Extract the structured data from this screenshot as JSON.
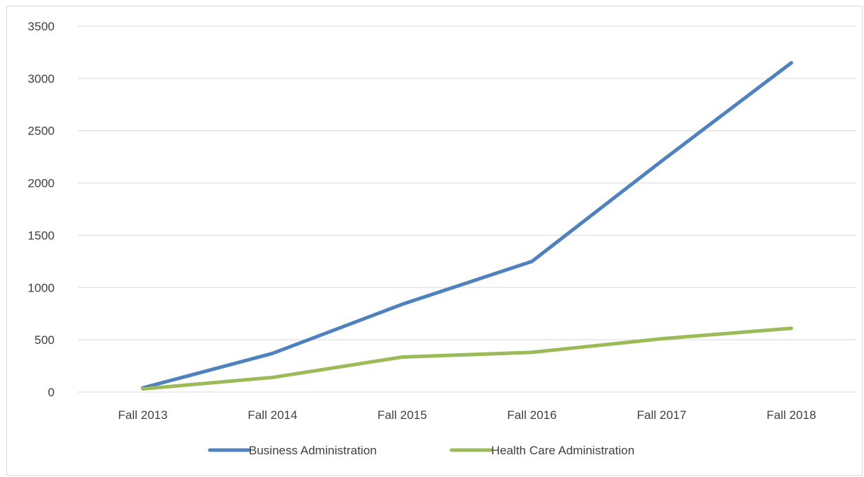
{
  "chart_data": {
    "type": "line",
    "title": "",
    "xlabel": "",
    "ylabel": "",
    "categories": [
      "Fall 2013",
      "Fall 2014",
      "Fall 2015",
      "Fall 2016",
      "Fall 2017",
      "Fall 2018"
    ],
    "ylim": [
      0,
      3500
    ],
    "yticks": [
      0,
      500,
      1000,
      1500,
      2000,
      2500,
      3000,
      3500
    ],
    "grid": true,
    "legend_position": "bottom",
    "series": [
      {
        "name": "Business Administration",
        "values": [
          40,
          370,
          840,
          1250,
          2210,
          3150
        ],
        "color": "#4f81bd"
      },
      {
        "name": "Health Care Administration",
        "values": [
          30,
          140,
          335,
          380,
          510,
          610
        ],
        "color": "#9bbb59"
      }
    ]
  }
}
